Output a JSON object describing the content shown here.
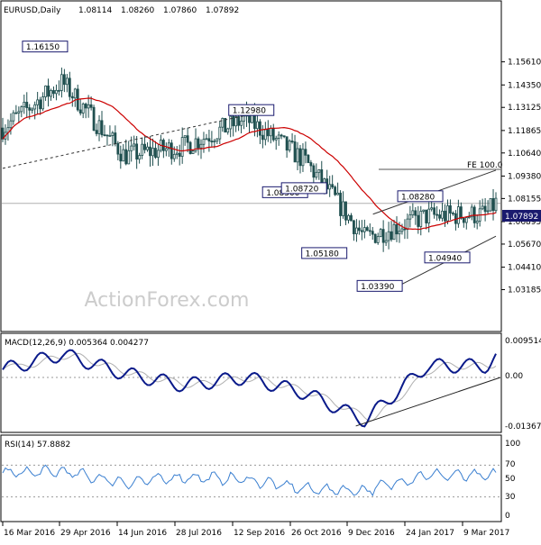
{
  "header": {
    "symbol": "EURUSD,Daily",
    "open": "1.08114",
    "high": "1.08260",
    "low": "1.07860",
    "close": "1.07892"
  },
  "watermark": "ActionForex.com",
  "colors": {
    "candle": "#1f4f4f",
    "ma": "#cc0000",
    "macd": "#0a1a8a",
    "signal": "#b0b0b0",
    "rsi": "#3a7fd0",
    "grid": "#d0d0d0",
    "label_border": "#1a1a6e",
    "current_bg": "#1a1a6e"
  },
  "price_panel": {
    "ylim": [
      1.01,
      1.18
    ],
    "ticks": [
      "1.15610",
      "1.14350",
      "1.13125",
      "1.11865",
      "1.10640",
      "1.09380",
      "1.08155",
      "1.06895",
      "1.05670",
      "1.04410",
      "1.03185"
    ],
    "current_price": "1.07892",
    "fe_label": "FE 100.0",
    "annotations": [
      {
        "label": "1.16150",
        "date": "2016-05-03",
        "value": 1.1615
      },
      {
        "label": "1.12980",
        "date": "2016-09-30",
        "value": 1.1298
      },
      {
        "label": "1.08500",
        "date": "2016-10-25",
        "value": 1.085
      },
      {
        "label": "1.08720",
        "date": "2016-11-08",
        "value": 1.0872
      },
      {
        "label": "1.05180",
        "date": "2016-11-23",
        "value": 1.0518
      },
      {
        "label": "1.03390",
        "date": "2017-01-03",
        "value": 1.0339
      },
      {
        "label": "1.08280",
        "date": "2017-02-02",
        "value": 1.0828
      },
      {
        "label": "1.04940",
        "date": "2017-02-22",
        "value": 1.0494
      }
    ]
  },
  "macd_panel": {
    "label": "MACD(12,26,9) 0.005364 0.004277",
    "ticks": [
      "0.009514",
      "0.00",
      "-0.013671"
    ]
  },
  "rsi_panel": {
    "label": "RSI(14) 57.8882",
    "ticks": [
      "100",
      "70",
      "50",
      "30",
      "0"
    ]
  },
  "x_axis": {
    "ticks": [
      "16 Mar 2016",
      "29 Apr 2016",
      "14 Jun 2016",
      "28 Jul 2016",
      "12 Sep 2016",
      "26 Oct 2016",
      "9 Dec 2016",
      "24 Jan 2017",
      "9 Mar 2017"
    ]
  },
  "chart_data": {
    "type": "line",
    "title": "EURUSD,Daily",
    "x": [
      "2016-03-16",
      "2016-04-29",
      "2016-06-14",
      "2016-07-28",
      "2016-09-12",
      "2016-10-26",
      "2016-12-09",
      "2017-01-24",
      "2017-03-09",
      "2017-03-16"
    ],
    "series": [
      {
        "values": [
          1.12,
          1.145,
          1.105,
          1.11,
          1.125,
          1.102,
          1.06,
          1.072,
          1.073,
          1.079
        ]
      }
    ],
    "macd": [
      0.002,
      0.006,
      0.001,
      -0.002,
      0.0,
      -0.004,
      -0.011,
      0.003,
      0.003,
      0.005
    ],
    "rsi": [
      60,
      62,
      48,
      55,
      52,
      40,
      38,
      58,
      56,
      58
    ],
    "ylim": [
      1.01,
      1.18
    ]
  }
}
